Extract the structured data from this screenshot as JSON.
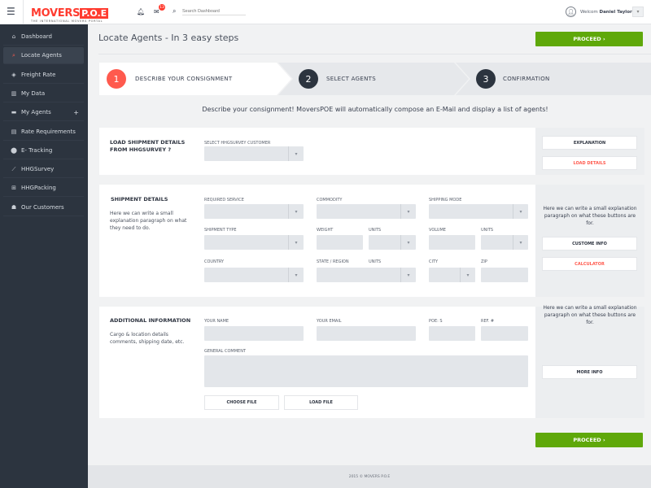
{
  "header": {
    "logo_main": "MOVERS",
    "logo_box": "P.O.E",
    "logo_tagline": "THE INTERNATIONAL MOVERS PORTAL",
    "mail_badge": "13",
    "search_placeholder": "Search Dashboard",
    "welcome": "Welcom",
    "user_name": "Daniel Taylor"
  },
  "sidebar": {
    "items": [
      {
        "label": "Dashboard",
        "icon": "home-icon"
      },
      {
        "label": "Locate Agents",
        "icon": "search-icon",
        "active": true
      },
      {
        "label": "Freight Rate",
        "icon": "tag-icon"
      },
      {
        "label": "My Data",
        "icon": "bar-chart-icon"
      },
      {
        "label": "My Agents",
        "icon": "briefcase-icon",
        "expand": "+"
      },
      {
        "label": "Rate Requirements",
        "icon": "document-icon"
      },
      {
        "label": "E- Tracking",
        "icon": "map-pin-icon"
      },
      {
        "label": "HHGSurvey",
        "icon": "line-chart-icon"
      },
      {
        "label": "HHGPacking",
        "icon": "gift-icon"
      },
      {
        "label": "Our Customers",
        "icon": "users-icon"
      }
    ]
  },
  "page": {
    "title": "Locate Agents - In 3 easy steps",
    "proceed": "PROCEED ›",
    "intro": "Describe your consignment! MoversPOE will automatically compose an E-Mail and display a list of agents!",
    "footer": "2015 © MOVERS P.O.E"
  },
  "steps": [
    {
      "num": "1",
      "label": "DESCRIBE YOUR CONSIGNMENT"
    },
    {
      "num": "2",
      "label": "SELECT AGENTS"
    },
    {
      "num": "3",
      "label": "CONFIRMATION"
    }
  ],
  "colors": {
    "accent": "#ff5a4e",
    "green": "#5fa80a",
    "sidebar": "#2c343f"
  },
  "load": {
    "title1": "LOAD SHIPMENT DETAILS",
    "title2": "FROM HHGSURVEY ?",
    "select_label": "SELECT HHGSURVEY CUSTOMER",
    "explanation": "EXPLANATION",
    "load_details": "LOAD DETAILS"
  },
  "shipment": {
    "title": "SHIPMENT DETAILS",
    "desc": "Here we can write a small explanation paragraph on what they need to do.",
    "required_service": "REQUIRED SERVICE",
    "commodity": "COMMODITY",
    "shipping_mode": "SHIPPING MODE",
    "shipment_type": "SHIPMENT TYPE",
    "weight": "WEIGHT",
    "units": "UNITS",
    "volume": "VOLUME",
    "country": "COUNTRY",
    "state": "STATE / REGION",
    "city": "CITY",
    "zip": "ZIP",
    "side_text": "Here we can write a small explanation paragraph on what these buttons are for.",
    "custome_info": "CUSTOME INFO",
    "calculator": "CALCULATOR"
  },
  "additional": {
    "title": "ADDITIONAL INFORMATION",
    "desc": "Cargo & location details comments, shipping date, etc.",
    "your_name": "YOUR NAME",
    "your_email": "YOUR EMAIL",
    "poes": "POE: S",
    "ref": "REF. #",
    "general_comment": "GENERAL COMMENT",
    "choose_file": "CHOOSE FILE",
    "load_file": "LOAD FILE",
    "side_text": "Here we can write a small explanation paragraph on what these buttons are for.",
    "more_info": "MORE INFO"
  }
}
